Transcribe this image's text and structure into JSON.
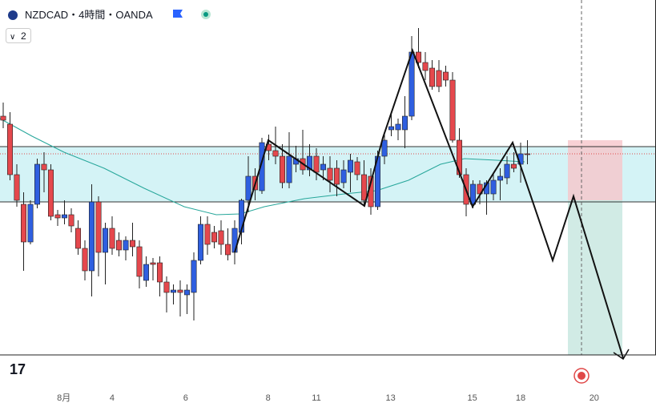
{
  "chart_data": {
    "type": "candlestick",
    "title": "NZDCAD・4時間・OANDA",
    "indicator_label": "2",
    "x": [
      0,
      1,
      2,
      3,
      4,
      5,
      6,
      7,
      8,
      9,
      10,
      11,
      12,
      13,
      14,
      15,
      16,
      17,
      18,
      19,
      20,
      21,
      22,
      23,
      24,
      25,
      26,
      27,
      28,
      29,
      30,
      31,
      32,
      33,
      34,
      35,
      36,
      37,
      38,
      39,
      40,
      41,
      42,
      43,
      44,
      45,
      46,
      47,
      48,
      49,
      50,
      51,
      52,
      53,
      54,
      55,
      56,
      57,
      58,
      59,
      60,
      61,
      62,
      63,
      64,
      65,
      66,
      67,
      68,
      69,
      70,
      71,
      72,
      73,
      74,
      75,
      76,
      77
    ],
    "open": [
      355,
      345,
      282,
      245,
      198,
      245,
      295,
      288,
      232,
      228,
      232,
      215,
      190,
      162,
      248,
      185,
      215,
      200,
      188,
      200,
      192,
      150,
      172,
      172,
      148,
      135,
      138,
      132,
      135,
      175,
      220,
      210,
      212,
      195,
      185,
      210,
      250,
      280,
      262,
      320,
      312,
      305,
      272,
      295,
      302,
      288,
      305,
      288,
      290,
      290,
      272,
      285,
      298,
      282,
      280,
      242,
      305,
      338,
      338,
      338,
      355,
      435,
      422,
      415,
      412,
      410,
      400,
      325,
      282,
      245,
      270,
      258,
      258,
      275,
      278,
      295,
      295,
      308
    ],
    "high": [
      372,
      360,
      295,
      260,
      250,
      302,
      310,
      295,
      238,
      250,
      240,
      225,
      200,
      270,
      255,
      222,
      230,
      210,
      205,
      222,
      200,
      180,
      178,
      180,
      155,
      145,
      150,
      145,
      185,
      230,
      230,
      218,
      225,
      215,
      225,
      252,
      305,
      290,
      328,
      332,
      342,
      320,
      335,
      318,
      338,
      320,
      315,
      305,
      305,
      300,
      300,
      308,
      304,
      300,
      290,
      312,
      335,
      360,
      352,
      380,
      455,
      465,
      435,
      425,
      425,
      418,
      410,
      340,
      290,
      275,
      275,
      275,
      285,
      290,
      305,
      310,
      322,
      325
    ],
    "low": [
      340,
      275,
      242,
      162,
      195,
      240,
      260,
      225,
      218,
      220,
      210,
      182,
      150,
      130,
      155,
      145,
      182,
      180,
      175,
      180,
      140,
      142,
      150,
      130,
      110,
      120,
      105,
      108,
      100,
      170,
      182,
      190,
      182,
      175,
      170,
      195,
      235,
      250,
      258,
      300,
      295,
      265,
      265,
      285,
      282,
      280,
      275,
      275,
      260,
      255,
      265,
      260,
      275,
      242,
      232,
      238,
      295,
      330,
      325,
      315,
      350,
      415,
      400,
      388,
      385,
      392,
      322,
      278,
      230,
      240,
      245,
      232,
      250,
      250,
      270,
      285,
      272,
      295
    ],
    "close": [
      350,
      282,
      250,
      198,
      245,
      295,
      288,
      230,
      228,
      232,
      218,
      190,
      162,
      248,
      185,
      215,
      190,
      188,
      200,
      192,
      155,
      170,
      170,
      148,
      135,
      138,
      135,
      138,
      175,
      220,
      195,
      198,
      195,
      182,
      215,
      250,
      280,
      263,
      322,
      312,
      305,
      272,
      305,
      302,
      288,
      305,
      285,
      295,
      275,
      270,
      288,
      300,
      282,
      250,
      242,
      305,
      325,
      342,
      345,
      355,
      435,
      422,
      412,
      392,
      392,
      400,
      325,
      282,
      245,
      270,
      258,
      272,
      275,
      280,
      295,
      290,
      308,
      307
    ],
    "up_color": "#2f5fe0",
    "down_color": "#e5484d",
    "xlim": [
      -0.47,
      95.88
    ],
    "ylim": [
      58,
      500
    ],
    "xticks": [
      {
        "value": 8.9,
        "label": "8月"
      },
      {
        "value": 16,
        "label": "4"
      },
      {
        "value": 26.8,
        "label": "6"
      },
      {
        "value": 38.9,
        "label": "8"
      },
      {
        "value": 46,
        "label": "11"
      },
      {
        "value": 56.9,
        "label": "13"
      },
      {
        "value": 68.9,
        "label": "15"
      },
      {
        "value": 76,
        "label": "18"
      },
      {
        "value": 86.8,
        "label": "20"
      }
    ]
  }
}
